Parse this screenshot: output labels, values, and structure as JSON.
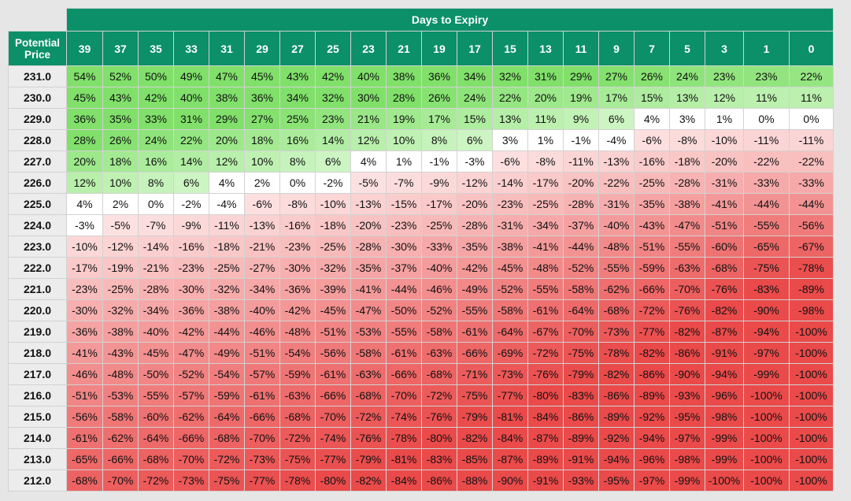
{
  "header": {
    "days_title": "Days to Expiry",
    "price_title_line1": "Potential",
    "price_title_line2": "Price"
  },
  "days": [
    "39",
    "37",
    "35",
    "33",
    "31",
    "29",
    "27",
    "25",
    "23",
    "21",
    "19",
    "17",
    "15",
    "13",
    "11",
    "9",
    "7",
    "5",
    "3",
    "1",
    "0"
  ],
  "colors": {
    "header_green": "#0b9069",
    "profit_green": "#80e06a",
    "loss_red": "#ea4a4a",
    "neutral": "#ffffff",
    "price_bg": "#ececec"
  },
  "rows": [
    {
      "price": "231.0",
      "values": [
        "54%",
        "52%",
        "50%",
        "49%",
        "47%",
        "45%",
        "43%",
        "42%",
        "40%",
        "38%",
        "36%",
        "34%",
        "32%",
        "31%",
        "29%",
        "27%",
        "26%",
        "24%",
        "23%",
        "23%",
        "22%"
      ]
    },
    {
      "price": "230.0",
      "values": [
        "45%",
        "43%",
        "42%",
        "40%",
        "38%",
        "36%",
        "34%",
        "32%",
        "30%",
        "28%",
        "26%",
        "24%",
        "22%",
        "20%",
        "19%",
        "17%",
        "15%",
        "13%",
        "12%",
        "11%",
        "11%"
      ]
    },
    {
      "price": "229.0",
      "values": [
        "36%",
        "35%",
        "33%",
        "31%",
        "29%",
        "27%",
        "25%",
        "23%",
        "21%",
        "19%",
        "17%",
        "15%",
        "13%",
        "11%",
        "9%",
        "6%",
        "4%",
        "3%",
        "1%",
        "0%",
        "0%"
      ]
    },
    {
      "price": "228.0",
      "values": [
        "28%",
        "26%",
        "24%",
        "22%",
        "20%",
        "18%",
        "16%",
        "14%",
        "12%",
        "10%",
        "8%",
        "6%",
        "3%",
        "1%",
        "-1%",
        "-4%",
        "-6%",
        "-8%",
        "-10%",
        "-11%",
        "-11%"
      ]
    },
    {
      "price": "227.0",
      "values": [
        "20%",
        "18%",
        "16%",
        "14%",
        "12%",
        "10%",
        "8%",
        "6%",
        "4%",
        "1%",
        "-1%",
        "-3%",
        "-6%",
        "-8%",
        "-11%",
        "-13%",
        "-16%",
        "-18%",
        "-20%",
        "-22%",
        "-22%"
      ]
    },
    {
      "price": "226.0",
      "values": [
        "12%",
        "10%",
        "8%",
        "6%",
        "4%",
        "2%",
        "0%",
        "-2%",
        "-5%",
        "-7%",
        "-9%",
        "-12%",
        "-14%",
        "-17%",
        "-20%",
        "-22%",
        "-25%",
        "-28%",
        "-31%",
        "-33%",
        "-33%"
      ]
    },
    {
      "price": "225.0",
      "values": [
        "4%",
        "2%",
        "0%",
        "-2%",
        "-4%",
        "-6%",
        "-8%",
        "-10%",
        "-13%",
        "-15%",
        "-17%",
        "-20%",
        "-23%",
        "-25%",
        "-28%",
        "-31%",
        "-35%",
        "-38%",
        "-41%",
        "-44%",
        "-44%"
      ]
    },
    {
      "price": "224.0",
      "values": [
        "-3%",
        "-5%",
        "-7%",
        "-9%",
        "-11%",
        "-13%",
        "-16%",
        "-18%",
        "-20%",
        "-23%",
        "-25%",
        "-28%",
        "-31%",
        "-34%",
        "-37%",
        "-40%",
        "-43%",
        "-47%",
        "-51%",
        "-55%",
        "-56%"
      ]
    },
    {
      "price": "223.0",
      "values": [
        "-10%",
        "-12%",
        "-14%",
        "-16%",
        "-18%",
        "-21%",
        "-23%",
        "-25%",
        "-28%",
        "-30%",
        "-33%",
        "-35%",
        "-38%",
        "-41%",
        "-44%",
        "-48%",
        "-51%",
        "-55%",
        "-60%",
        "-65%",
        "-67%"
      ]
    },
    {
      "price": "222.0",
      "values": [
        "-17%",
        "-19%",
        "-21%",
        "-23%",
        "-25%",
        "-27%",
        "-30%",
        "-32%",
        "-35%",
        "-37%",
        "-40%",
        "-42%",
        "-45%",
        "-48%",
        "-52%",
        "-55%",
        "-59%",
        "-63%",
        "-68%",
        "-75%",
        "-78%"
      ]
    },
    {
      "price": "221.0",
      "values": [
        "-23%",
        "-25%",
        "-28%",
        "-30%",
        "-32%",
        "-34%",
        "-36%",
        "-39%",
        "-41%",
        "-44%",
        "-46%",
        "-49%",
        "-52%",
        "-55%",
        "-58%",
        "-62%",
        "-66%",
        "-70%",
        "-76%",
        "-83%",
        "-89%"
      ]
    },
    {
      "price": "220.0",
      "values": [
        "-30%",
        "-32%",
        "-34%",
        "-36%",
        "-38%",
        "-40%",
        "-42%",
        "-45%",
        "-47%",
        "-50%",
        "-52%",
        "-55%",
        "-58%",
        "-61%",
        "-64%",
        "-68%",
        "-72%",
        "-76%",
        "-82%",
        "-90%",
        "-98%"
      ]
    },
    {
      "price": "219.0",
      "values": [
        "-36%",
        "-38%",
        "-40%",
        "-42%",
        "-44%",
        "-46%",
        "-48%",
        "-51%",
        "-53%",
        "-55%",
        "-58%",
        "-61%",
        "-64%",
        "-67%",
        "-70%",
        "-73%",
        "-77%",
        "-82%",
        "-87%",
        "-94%",
        "-100%"
      ]
    },
    {
      "price": "218.0",
      "values": [
        "-41%",
        "-43%",
        "-45%",
        "-47%",
        "-49%",
        "-51%",
        "-54%",
        "-56%",
        "-58%",
        "-61%",
        "-63%",
        "-66%",
        "-69%",
        "-72%",
        "-75%",
        "-78%",
        "-82%",
        "-86%",
        "-91%",
        "-97%",
        "-100%"
      ]
    },
    {
      "price": "217.0",
      "values": [
        "-46%",
        "-48%",
        "-50%",
        "-52%",
        "-54%",
        "-57%",
        "-59%",
        "-61%",
        "-63%",
        "-66%",
        "-68%",
        "-71%",
        "-73%",
        "-76%",
        "-79%",
        "-82%",
        "-86%",
        "-90%",
        "-94%",
        "-99%",
        "-100%"
      ]
    },
    {
      "price": "216.0",
      "values": [
        "-51%",
        "-53%",
        "-55%",
        "-57%",
        "-59%",
        "-61%",
        "-63%",
        "-66%",
        "-68%",
        "-70%",
        "-72%",
        "-75%",
        "-77%",
        "-80%",
        "-83%",
        "-86%",
        "-89%",
        "-93%",
        "-96%",
        "-100%",
        "-100%"
      ]
    },
    {
      "price": "215.0",
      "values": [
        "-56%",
        "-58%",
        "-60%",
        "-62%",
        "-64%",
        "-66%",
        "-68%",
        "-70%",
        "-72%",
        "-74%",
        "-76%",
        "-79%",
        "-81%",
        "-84%",
        "-86%",
        "-89%",
        "-92%",
        "-95%",
        "-98%",
        "-100%",
        "-100%"
      ]
    },
    {
      "price": "214.0",
      "values": [
        "-61%",
        "-62%",
        "-64%",
        "-66%",
        "-68%",
        "-70%",
        "-72%",
        "-74%",
        "-76%",
        "-78%",
        "-80%",
        "-82%",
        "-84%",
        "-87%",
        "-89%",
        "-92%",
        "-94%",
        "-97%",
        "-99%",
        "-100%",
        "-100%"
      ]
    },
    {
      "price": "213.0",
      "values": [
        "-65%",
        "-66%",
        "-68%",
        "-70%",
        "-72%",
        "-73%",
        "-75%",
        "-77%",
        "-79%",
        "-81%",
        "-83%",
        "-85%",
        "-87%",
        "-89%",
        "-91%",
        "-94%",
        "-96%",
        "-98%",
        "-99%",
        "-100%",
        "-100%"
      ]
    },
    {
      "price": "212.0",
      "values": [
        "-68%",
        "-70%",
        "-72%",
        "-73%",
        "-75%",
        "-77%",
        "-78%",
        "-80%",
        "-82%",
        "-84%",
        "-86%",
        "-88%",
        "-90%",
        "-91%",
        "-93%",
        "-95%",
        "-97%",
        "-99%",
        "-100%",
        "-100%",
        "-100%"
      ]
    }
  ]
}
